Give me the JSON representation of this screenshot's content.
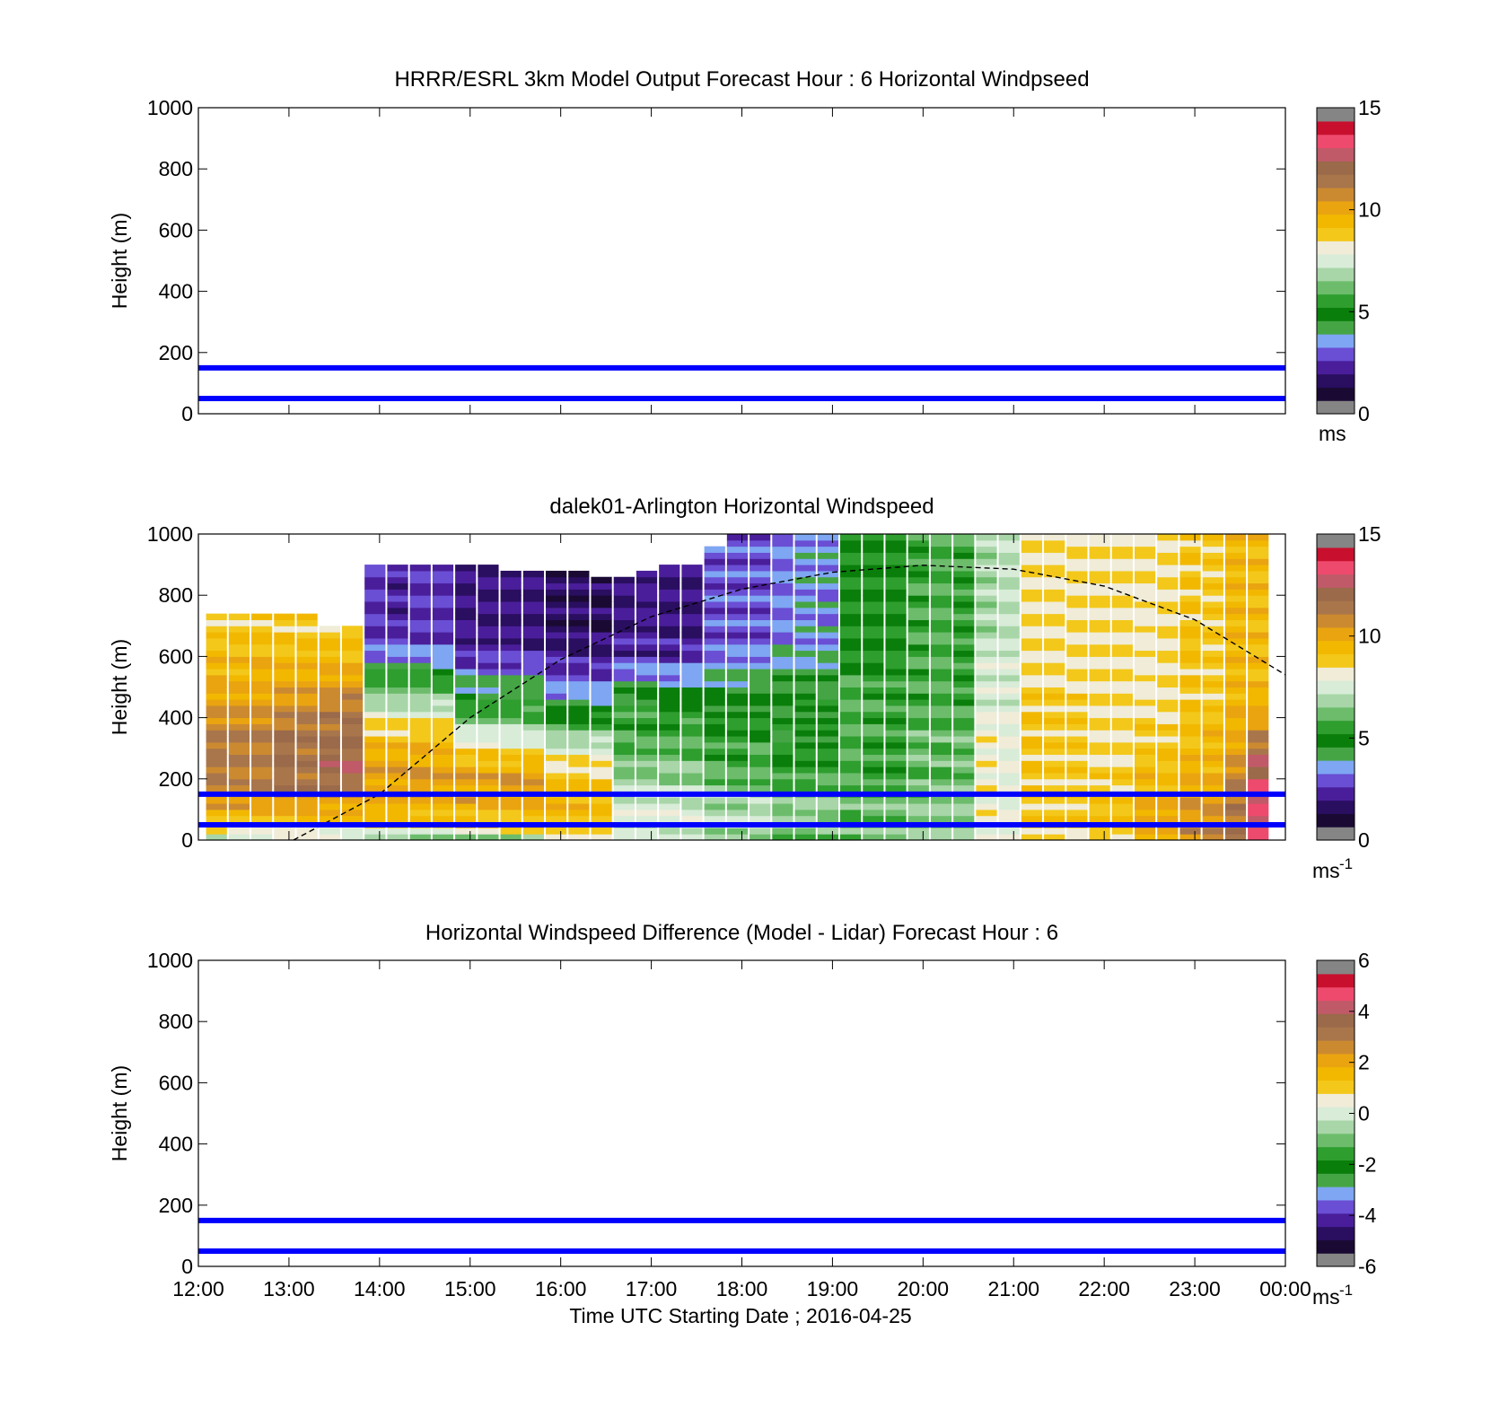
{
  "chart_data": [
    {
      "type": "heatmap",
      "title": "HRRR/ESRL 3km Model Output   Forecast Hour : 6 Horizontal Windpseed",
      "ylabel": "Height (m)",
      "xlabel": "",
      "xlim": [
        12,
        24
      ],
      "ylim": [
        0,
        1000
      ],
      "y_ticks": [
        "0",
        "200",
        "400",
        "600",
        "800",
        "1000"
      ],
      "x_ticks": [],
      "colorbar": {
        "ticks": [
          "0",
          "5",
          "10",
          "15"
        ],
        "range": [
          0,
          15
        ],
        "unit": "ms"
      },
      "reference_lines": [
        {
          "height": 50,
          "color": "#0000ff"
        },
        {
          "height": 150,
          "color": "#0000ff"
        }
      ],
      "grid": false,
      "data": []
    },
    {
      "type": "heatmap",
      "title": "dalek01-Arlington  Horizontal Windspeed",
      "ylabel": "Height (m)",
      "xlabel": "",
      "xlim": [
        12,
        24
      ],
      "ylim": [
        0,
        1000
      ],
      "y_ticks": [
        "0",
        "200",
        "400",
        "600",
        "800",
        "1000"
      ],
      "x_ticks": [],
      "colorbar": {
        "ticks": [
          "0",
          "5",
          "10",
          "15"
        ],
        "range": [
          0,
          15
        ],
        "unit": "ms",
        "unit_exp": "-1"
      },
      "reference_lines": [
        {
          "height": 50,
          "color": "#0000ff"
        },
        {
          "height": 150,
          "color": "#0000ff"
        }
      ],
      "boundary_layer_curve": {
        "style": "dashed",
        "color": "#000000",
        "points": [
          [
            13.05,
            0
          ],
          [
            14,
            150
          ],
          [
            15,
            400
          ],
          [
            16,
            590
          ],
          [
            17,
            730
          ],
          [
            18,
            820
          ],
          [
            19,
            875
          ],
          [
            20,
            898
          ],
          [
            21,
            885
          ],
          [
            22,
            830
          ],
          [
            23,
            720
          ],
          [
            24,
            540
          ]
        ]
      },
      "profile_times": [
        12.2,
        12.45,
        12.7,
        12.95,
        13.2,
        13.45,
        13.7,
        13.95,
        14.2,
        14.45,
        14.7,
        14.95,
        15.2,
        15.45,
        15.7,
        15.95,
        16.2,
        16.45,
        16.7,
        16.95,
        17.2,
        17.45,
        17.7,
        17.95,
        18.2,
        18.45,
        18.7,
        18.95,
        19.2,
        19.45,
        19.7,
        19.95,
        20.2,
        20.45,
        20.7,
        20.95,
        21.2,
        21.45,
        21.7,
        21.95,
        22.2,
        22.45,
        22.7,
        22.95,
        23.2,
        23.45,
        23.7
      ],
      "profile_heights": [
        0,
        40,
        80,
        120,
        160,
        200,
        280,
        360,
        440,
        520,
        600,
        680,
        760,
        840,
        920,
        1000
      ],
      "profile_top_heights": [
        740,
        740,
        740,
        740,
        740,
        700,
        700,
        900,
        900,
        900,
        900,
        900,
        900,
        880,
        880,
        880,
        880,
        860,
        860,
        880,
        900,
        900,
        950,
        1000,
        1000,
        1000,
        1000,
        1000,
        1000,
        1000,
        1000,
        1000,
        1000,
        1000,
        1000,
        1000,
        1000,
        1000,
        1000,
        1000,
        1000,
        1000,
        1000,
        1000,
        1000,
        1000,
        1000
      ],
      "profile_speeds": [
        [
          6.5,
          8.5,
          9.5,
          10.5,
          11,
          11.5,
          11.5,
          11.5,
          10.5,
          10,
          9.5,
          9
        ],
        [
          6.5,
          8.5,
          9.5,
          10.5,
          11,
          11.5,
          11.5,
          11.5,
          10.5,
          10,
          9.5,
          9
        ],
        [
          6.5,
          8.5,
          9.5,
          10.5,
          11,
          11.5,
          11.5,
          11.5,
          10.5,
          10,
          9.5,
          9
        ],
        [
          7,
          8.5,
          9.5,
          10.5,
          11.5,
          12,
          12,
          12,
          11,
          10,
          9.5,
          9
        ],
        [
          7,
          8.5,
          9.5,
          10.5,
          11.5,
          12,
          12,
          12,
          11,
          10,
          9.5,
          9
        ],
        [
          7,
          8.5,
          9.5,
          10.5,
          11.5,
          12.5,
          12.5,
          12,
          11.5,
          10.5,
          9.5,
          9
        ],
        [
          7,
          8.5,
          9.5,
          10.5,
          11.5,
          12.5,
          12.5,
          12,
          11.5,
          10.5,
          9.5,
          9
        ],
        [
          6,
          8.5,
          9.5,
          10,
          10.5,
          10.5,
          10,
          9,
          7,
          5.5,
          3,
          2
        ],
        [
          6,
          8.5,
          9.5,
          10,
          10.5,
          10.5,
          10,
          9,
          7,
          5.5,
          3,
          2
        ],
        [
          6,
          8.5,
          9.5,
          10,
          10.5,
          10.5,
          10,
          9,
          7,
          5.5,
          3,
          2
        ],
        [
          6,
          8.5,
          9.5,
          10,
          10.5,
          10.5,
          10,
          9,
          7,
          5.5,
          3,
          2
        ],
        [
          6,
          9,
          9.5,
          10,
          10.5,
          10.5,
          9,
          7,
          5,
          3.5,
          2,
          1.5
        ],
        [
          6,
          9,
          9.5,
          10,
          10.5,
          10.5,
          9,
          7,
          5,
          3.5,
          2,
          1.5
        ],
        [
          6,
          9,
          9.5,
          10,
          10.5,
          10.5,
          9,
          7,
          5,
          3.5,
          2,
          1.5
        ],
        [
          6,
          9,
          9.5,
          10,
          10.5,
          10.5,
          9,
          7,
          5,
          3.5,
          2,
          1.5
        ],
        [
          7.5,
          9,
          9.5,
          9.5,
          9.5,
          9,
          8,
          6,
          4,
          2.5,
          1.5,
          1
        ],
        [
          7.5,
          9,
          9.5,
          9.5,
          9.5,
          9,
          8,
          6,
          4,
          2.5,
          1.5,
          1
        ],
        [
          7.5,
          9,
          9.5,
          9.5,
          9.5,
          9,
          8,
          6,
          4,
          2.5,
          1.5,
          1
        ],
        [
          7,
          7.5,
          7.5,
          7.5,
          7,
          6.5,
          6,
          5.5,
          5,
          3.5,
          2,
          1.5
        ],
        [
          7,
          7.5,
          7.5,
          7.5,
          7,
          6.5,
          6,
          5.5,
          5,
          3.5,
          2,
          1.5
        ],
        [
          7,
          7.5,
          7.5,
          7.5,
          7,
          6.5,
          6,
          5.5,
          5,
          3.5,
          2,
          1.5
        ],
        [
          7,
          7.5,
          7.5,
          7.5,
          7,
          6.5,
          6,
          5.5,
          5,
          3.5,
          2,
          1.5
        ],
        [
          6.5,
          7,
          7,
          7,
          6.5,
          6,
          5.5,
          5,
          4.5,
          4,
          3,
          2.5
        ],
        [
          6.5,
          7,
          7,
          7,
          6.5,
          6,
          5.5,
          5,
          4.5,
          4,
          3,
          2.5
        ],
        [
          6.5,
          7,
          7,
          7,
          6.5,
          6,
          5.5,
          5,
          4.5,
          4,
          3,
          2.5
        ],
        [
          6,
          6.5,
          6.5,
          6.5,
          6,
          5.5,
          5,
          4.5,
          4.5,
          4,
          3.5,
          3
        ],
        [
          6,
          6.5,
          6.5,
          6.5,
          6,
          5.5,
          5,
          4.5,
          4.5,
          4,
          3.5,
          3
        ],
        [
          6,
          6.5,
          6.5,
          6.5,
          6,
          5.5,
          5,
          4.5,
          4.5,
          4,
          3.5,
          3
        ],
        [
          6,
          6,
          6,
          6,
          5.5,
          5.5,
          5.5,
          5.5,
          5.5,
          5.5,
          5,
          5
        ],
        [
          6,
          6,
          6,
          6,
          5.5,
          5.5,
          5.5,
          5.5,
          5.5,
          5.5,
          5,
          5
        ],
        [
          6,
          6,
          6,
          6,
          5.5,
          5.5,
          5.5,
          5.5,
          5.5,
          5.5,
          5,
          5
        ],
        [
          6.5,
          6.5,
          6.5,
          6.5,
          6,
          6,
          6,
          6,
          5.5,
          5.5,
          5.5,
          5.5
        ],
        [
          6.5,
          6.5,
          6.5,
          6.5,
          6,
          6,
          6,
          6,
          5.5,
          5.5,
          5.5,
          5.5
        ],
        [
          6.5,
          6.5,
          6.5,
          6.5,
          6,
          6,
          6,
          6,
          5.5,
          5.5,
          5.5,
          5.5
        ],
        [
          7.5,
          8,
          8,
          8,
          8,
          8,
          8,
          8,
          7.5,
          7.5,
          7.5,
          7
        ],
        [
          7.5,
          8,
          8,
          8,
          8,
          8,
          8,
          8,
          7.5,
          7.5,
          7.5,
          7
        ],
        [
          8.5,
          9,
          9,
          9,
          9,
          9,
          9,
          9,
          9,
          8.5,
          8.5,
          8.5
        ],
        [
          8.5,
          9,
          9,
          9,
          9,
          9,
          9,
          9,
          9,
          8.5,
          8.5,
          8.5
        ],
        [
          8.5,
          9,
          9,
          9,
          9,
          9,
          9,
          9,
          9,
          8.5,
          8.5,
          8.5
        ],
        [
          9,
          9.5,
          9.5,
          9,
          9,
          9,
          8.5,
          8.5,
          8.5,
          8.5,
          8.5,
          8.5
        ],
        [
          9,
          9.5,
          9.5,
          9,
          9,
          9,
          8.5,
          8.5,
          8.5,
          8.5,
          8.5,
          8.5
        ],
        [
          10,
          10.5,
          10.5,
          10,
          9.5,
          9.5,
          9,
          9,
          8.5,
          8.5,
          8.5,
          8.5
        ],
        [
          10,
          10.5,
          10.5,
          10,
          9.5,
          9.5,
          9,
          9,
          8.5,
          8.5,
          8.5,
          8.5
        ],
        [
          11,
          11,
          11,
          10.5,
          10,
          10,
          9.5,
          9.5,
          9,
          9,
          9,
          9
        ],
        [
          11,
          11,
          11,
          10.5,
          10,
          10,
          9.5,
          9.5,
          9,
          9,
          9,
          9
        ],
        [
          12,
          12,
          12,
          11.5,
          11.5,
          11,
          10.5,
          10,
          10,
          9.5,
          9.5,
          9.5
        ],
        [
          13.5,
          13.5,
          13.5,
          13.5,
          13.5,
          13,
          12.5,
          11,
          10,
          9.5,
          9.5,
          9.5
        ]
      ]
    },
    {
      "type": "heatmap",
      "title": "Horizontal Windspeed Difference (Model - Lidar) Forecast Hour : 6",
      "ylabel": "Height (m)",
      "xlabel": "Time UTC  Starting Date ; 2016-04-25",
      "xlim": [
        12,
        24
      ],
      "ylim": [
        0,
        1000
      ],
      "y_ticks": [
        "0",
        "200",
        "400",
        "600",
        "800",
        "1000"
      ],
      "x_ticks": [
        "12:00",
        "13:00",
        "14:00",
        "15:00",
        "16:00",
        "17:00",
        "18:00",
        "19:00",
        "20:00",
        "21:00",
        "22:00",
        "23:00",
        "00:00"
      ],
      "colorbar": {
        "ticks": [
          "-6",
          "-4",
          "-2",
          "0",
          "2",
          "4",
          "6"
        ],
        "range": [
          -6,
          6
        ],
        "unit": "ms",
        "unit_exp": "-1"
      },
      "reference_lines": [
        {
          "height": 50,
          "color": "#0000ff"
        },
        {
          "height": 150,
          "color": "#0000ff"
        }
      ],
      "grid": false,
      "data": []
    }
  ],
  "colormap": [
    "#858585",
    "#1a0a33",
    "#2a0e60",
    "#4a1e9a",
    "#6a4ed4",
    "#7ea6f2",
    "#45a545",
    "#0a7e0a",
    "#2e9e2e",
    "#6cbc6c",
    "#a8d6a8",
    "#d8ecd8",
    "#f0ecd8",
    "#f3c81a",
    "#f2b800",
    "#eaa410",
    "#cc8a30",
    "#a9764c",
    "#9a6a4a",
    "#c05a68",
    "#ee4a6e",
    "#c8102e",
    "#858585"
  ],
  "colors": {
    "reference_line": "#0000ff",
    "axes": "#000000"
  }
}
